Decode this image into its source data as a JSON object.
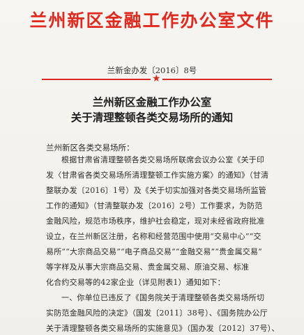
{
  "header": {
    "title": "兰州新区金融工作办公室文件",
    "doc_number": "兰新金办发〔2016〕8号"
  },
  "notice": {
    "title_line1": "兰州新区金融工作办公室",
    "title_line2": "关于清理整顿各类交易场所的通知"
  },
  "body": {
    "salutation": "兰州新区各类交易场所：",
    "lines": [
      "根据甘肃省清理整顿各类交易场所联席会议办公室《关于印",
      "发〈甘肃省各类交易场所清理整顿工作实施方案〉的通知》（甘清",
      "整联办发〔2016〕1号）及《关于切实加强对各类交易场所监管",
      "工作的通知》（甘清整联办发〔2016〕2号）工作要求，为防范",
      "金融风险，规范市场秩序，维护社会稳定，现对未经省政府批准",
      "设立，在兰州新区注册，名称和经营范围中使用“交易中心”“交",
      "易所”“大宗商品交易”“电子商品交易”“金融交易”“贵金属交易”",
      "等字样及从事大宗商品交易、贵金属交易、原油交易、标准",
      "化合约交易等的42家企业（详见附表1）通知如下：",
      "一、你单位已违反了《国务院关于清理整顿各类交易场所切",
      "实防范金融风险的决定》（国发〔2011〕38号）、《国务院办公厅",
      "关于清理整顿各类交易场所的实施意见》（国办发〔2012〕37号）、"
    ]
  },
  "colors": {
    "header_red": "#e0291f",
    "rule_red": "#d72a22",
    "paper": "#f4f2ee",
    "text": "#2a2a2a"
  }
}
